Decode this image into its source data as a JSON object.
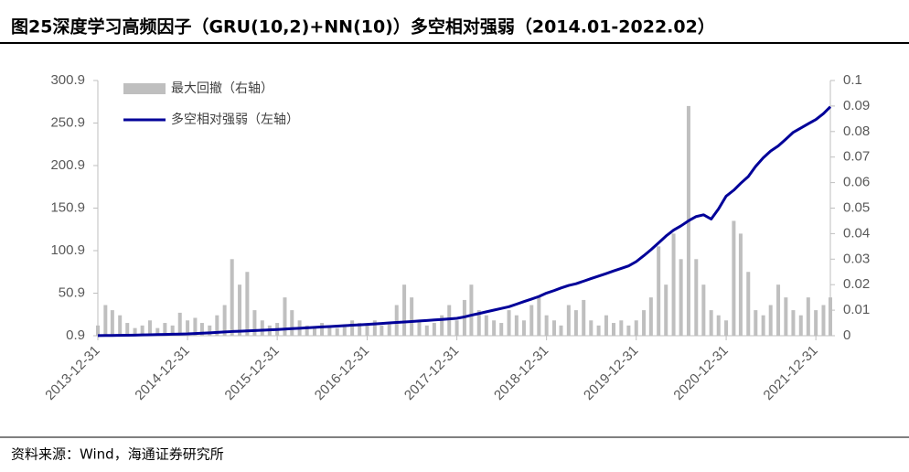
{
  "chart_data": {
    "type": "combo",
    "title": "图25深度学习高频因子（GRU(10,2)+NN(10)）多空相对强弱（2014.01-2022.02）",
    "source": "资料来源：Wind，海通证券研究所",
    "x": [
      "2013-12-31",
      "2014-01-31",
      "2014-02-28",
      "2014-03-31",
      "2014-04-30",
      "2014-05-31",
      "2014-06-30",
      "2014-07-31",
      "2014-08-31",
      "2014-09-30",
      "2014-10-31",
      "2014-11-30",
      "2014-12-31",
      "2015-01-31",
      "2015-02-28",
      "2015-03-31",
      "2015-04-30",
      "2015-05-31",
      "2015-06-30",
      "2015-07-31",
      "2015-08-31",
      "2015-09-30",
      "2015-10-31",
      "2015-11-30",
      "2015-12-31",
      "2016-01-31",
      "2016-02-29",
      "2016-03-31",
      "2016-04-30",
      "2016-05-31",
      "2016-06-30",
      "2016-07-31",
      "2016-08-31",
      "2016-09-30",
      "2016-10-31",
      "2016-11-30",
      "2016-12-31",
      "2017-01-31",
      "2017-02-28",
      "2017-03-31",
      "2017-04-30",
      "2017-05-31",
      "2017-06-30",
      "2017-07-31",
      "2017-08-31",
      "2017-09-30",
      "2017-10-31",
      "2017-11-30",
      "2017-12-31",
      "2018-01-31",
      "2018-02-28",
      "2018-03-31",
      "2018-04-30",
      "2018-05-31",
      "2018-06-30",
      "2018-07-31",
      "2018-08-31",
      "2018-09-30",
      "2018-10-31",
      "2018-11-30",
      "2018-12-31",
      "2019-01-31",
      "2019-02-28",
      "2019-03-31",
      "2019-04-30",
      "2019-05-31",
      "2019-06-30",
      "2019-07-31",
      "2019-08-31",
      "2019-09-30",
      "2019-10-31",
      "2019-11-30",
      "2019-12-31",
      "2020-01-31",
      "2020-02-29",
      "2020-03-31",
      "2020-04-30",
      "2020-05-31",
      "2020-06-30",
      "2020-07-31",
      "2020-08-31",
      "2020-09-30",
      "2020-10-31",
      "2020-11-30",
      "2020-12-31",
      "2021-01-31",
      "2021-02-28",
      "2021-03-31",
      "2021-04-30",
      "2021-05-31",
      "2021-06-30",
      "2021-07-31",
      "2021-08-31",
      "2021-09-30",
      "2021-10-31",
      "2021-11-30",
      "2021-12-31",
      "2022-01-31",
      "2022-02-28"
    ],
    "series": [
      {
        "name": "最大回撤（右轴）",
        "type": "bar",
        "axis": "y2",
        "color": "#bfbfbf",
        "values": [
          0.004,
          0.012,
          0.01,
          0.008,
          0.005,
          0.003,
          0.004,
          0.006,
          0.003,
          0.005,
          0.004,
          0.009,
          0.006,
          0.007,
          0.005,
          0.004,
          0.008,
          0.012,
          0.03,
          0.02,
          0.025,
          0.01,
          0.006,
          0.004,
          0.005,
          0.015,
          0.01,
          0.006,
          0.004,
          0.003,
          0.005,
          0.004,
          0.003,
          0.004,
          0.006,
          0.005,
          0.004,
          0.006,
          0.004,
          0.005,
          0.012,
          0.02,
          0.015,
          0.006,
          0.004,
          0.005,
          0.008,
          0.012,
          0.006,
          0.014,
          0.02,
          0.01,
          0.008,
          0.006,
          0.005,
          0.01,
          0.008,
          0.006,
          0.012,
          0.015,
          0.008,
          0.006,
          0.004,
          0.012,
          0.01,
          0.014,
          0.006,
          0.004,
          0.008,
          0.005,
          0.006,
          0.004,
          0.006,
          0.01,
          0.015,
          0.035,
          0.02,
          0.04,
          0.03,
          0.09,
          0.03,
          0.02,
          0.01,
          0.008,
          0.006,
          0.045,
          0.04,
          0.025,
          0.01,
          0.008,
          0.012,
          0.02,
          0.015,
          0.01,
          0.008,
          0.015,
          0.01,
          0.012,
          0.015
        ]
      },
      {
        "name": "多空相对强弱（左轴）",
        "type": "line",
        "color": "#000099",
        "values": [
          1.0,
          1.1,
          1.2,
          1.3,
          1.5,
          1.6,
          1.8,
          2.0,
          2.2,
          2.4,
          2.6,
          2.8,
          3.0,
          3.4,
          3.8,
          4.3,
          4.8,
          5.3,
          5.8,
          6.2,
          6.6,
          7.0,
          7.4,
          7.8,
          8.2,
          8.7,
          9.2,
          9.7,
          10.2,
          10.7,
          11.2,
          11.7,
          12.2,
          12.7,
          13.2,
          13.7,
          14.2,
          14.8,
          15.3,
          15.9,
          16.5,
          17.0,
          17.6,
          18.2,
          18.8,
          19.4,
          20.0,
          20.6,
          21.3,
          23,
          25,
          27,
          29,
          31,
          33,
          35,
          38,
          41,
          44,
          47,
          51,
          54,
          57,
          60,
          62,
          65,
          68,
          71,
          74,
          77,
          80,
          83,
          88,
          95,
          102,
          110,
          118,
          125,
          130,
          136,
          141,
          143,
          138,
          150,
          165,
          172,
          180,
          188,
          200,
          210,
          218,
          224,
          232,
          240,
          245,
          250,
          255,
          262,
          270
        ]
      }
    ],
    "xlim": [
      "2013-12-31",
      "2022-02-28"
    ],
    "xticks": [
      "2013-12-31",
      "2014-12-31",
      "2015-12-31",
      "2016-12-31",
      "2017-12-31",
      "2018-12-31",
      "2019-12-31",
      "2020-12-31",
      "2021-12-31"
    ],
    "ylim": [
      0.9,
      300.9
    ],
    "yticks": [
      0.9,
      50.9,
      100.9,
      150.9,
      200.9,
      250.9,
      300.9
    ],
    "y2lim": [
      0,
      0.1
    ],
    "y2ticks": [
      0,
      0.01,
      0.02,
      0.03,
      0.04,
      0.05,
      0.06,
      0.07,
      0.08,
      0.09,
      0.1
    ],
    "legend": "upper-left"
  }
}
